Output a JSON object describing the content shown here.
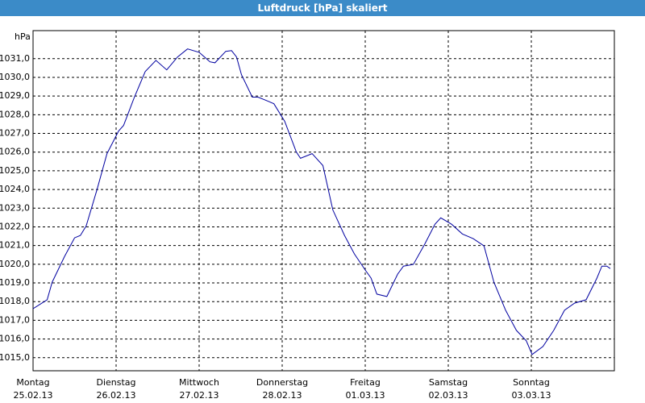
{
  "chart_data": {
    "type": "line",
    "title": "Luftdruck [hPa] skaliert",
    "y_label": "hPa",
    "xlim": [
      0,
      7
    ],
    "ylim": [
      1014.3,
      1032.5
    ],
    "xticks": [
      {
        "value": 0,
        "label": "Montag"
      },
      {
        "value": 1,
        "label": "Dienstag"
      },
      {
        "value": 2,
        "label": "Mittwoch"
      },
      {
        "value": 3,
        "label": "Donnerstag"
      },
      {
        "value": 4,
        "label": "Freitag"
      },
      {
        "value": 5,
        "label": "Samstag"
      },
      {
        "value": 6,
        "label": "Sonntag"
      }
    ],
    "xtick_dates": [
      "25.02.13",
      "26.02.13",
      "27.02.13",
      "28.02.13",
      "01.03.13",
      "02.03.13",
      "03.03.13"
    ],
    "yticks": [
      {
        "value": 1015,
        "label": "1015,0"
      },
      {
        "value": 1016,
        "label": "1016,0"
      },
      {
        "value": 1017,
        "label": "1017,0"
      },
      {
        "value": 1018,
        "label": "1018,0"
      },
      {
        "value": 1019,
        "label": "1019,0"
      },
      {
        "value": 1020,
        "label": "1020,0"
      },
      {
        "value": 1021,
        "label": "1021,0"
      },
      {
        "value": 1022,
        "label": "1022,0"
      },
      {
        "value": 1023,
        "label": "1023,0"
      },
      {
        "value": 1024,
        "label": "1024,0"
      },
      {
        "value": 1025,
        "label": "1025,0"
      },
      {
        "value": 1026,
        "label": "1026,0"
      },
      {
        "value": 1027,
        "label": "1027,0"
      },
      {
        "value": 1028,
        "label": "1028,0"
      },
      {
        "value": 1029,
        "label": "1029,0"
      },
      {
        "value": 1030,
        "label": "1030,0"
      },
      {
        "value": 1031,
        "label": "1031,0"
      }
    ],
    "grid": true,
    "color": "#0000a0",
    "x": [
      0,
      0.17,
      0.23,
      0.38,
      0.5,
      0.57,
      0.64,
      0.77,
      0.89,
      1.03,
      1.09,
      1.22,
      1.35,
      1.48,
      1.61,
      1.74,
      1.86,
      2.0,
      2.13,
      2.19,
      2.32,
      2.39,
      2.45,
      2.51,
      2.64,
      2.71,
      2.83,
      2.9,
      3.03,
      3.17,
      3.22,
      3.36,
      3.49,
      3.61,
      3.75,
      3.87,
      4.0,
      4.07,
      4.14,
      4.26,
      4.39,
      4.46,
      4.58,
      4.72,
      4.84,
      4.91,
      5.04,
      5.17,
      5.3,
      5.43,
      5.55,
      5.69,
      5.82,
      5.94,
      6.01,
      6.14,
      6.27,
      6.4,
      6.52,
      6.66,
      6.79,
      6.85,
      6.91,
      6.95
    ],
    "values": [
      1017.62,
      1018.1,
      1019.04,
      1020.42,
      1021.41,
      1021.54,
      1022.05,
      1023.99,
      1025.92,
      1027.13,
      1027.43,
      1028.94,
      1030.31,
      1030.91,
      1030.4,
      1031.09,
      1031.52,
      1031.34,
      1030.83,
      1030.78,
      1031.39,
      1031.43,
      1031.09,
      1030.14,
      1028.94,
      1028.94,
      1028.72,
      1028.59,
      1027.65,
      1026.01,
      1025.67,
      1025.92,
      1025.28,
      1022.91,
      1021.54,
      1020.55,
      1019.69,
      1019.26,
      1018.4,
      1018.27,
      1019.47,
      1019.9,
      1019.99,
      1021.11,
      1022.14,
      1022.48,
      1022.14,
      1021.62,
      1021.37,
      1020.98,
      1019.04,
      1017.54,
      1016.46,
      1015.9,
      1015.17,
      1015.6,
      1016.46,
      1017.54,
      1017.92,
      1018.1,
      1019.26,
      1019.9,
      1019.9,
      1019.77
    ]
  }
}
